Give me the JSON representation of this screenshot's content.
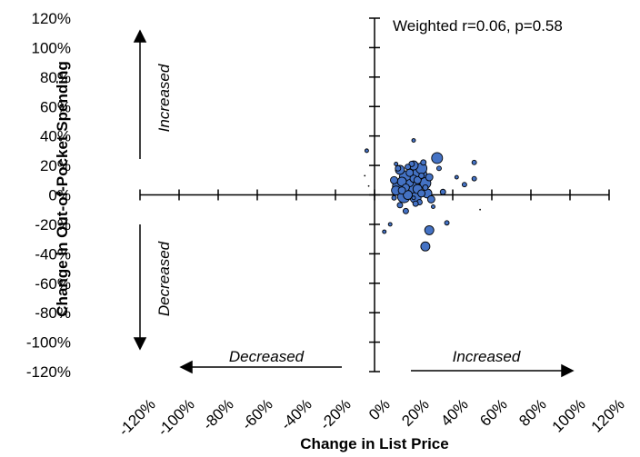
{
  "chart_data": {
    "type": "scatter",
    "title": "",
    "xlabel": "Change in List Price",
    "ylabel": "Change in Out-of-Pocket Spending",
    "xlim": [
      -1.2,
      1.2
    ],
    "ylim": [
      -1.2,
      1.2
    ],
    "x_ticks": [
      "-120%",
      "-100%",
      "-80%",
      "-60%",
      "-40%",
      "-20%",
      "0%",
      "20%",
      "40%",
      "60%",
      "80%",
      "100%",
      "120%"
    ],
    "y_ticks": [
      "120%",
      "100%",
      "80%",
      "60%",
      "40%",
      "20%",
      "0%",
      "-20%",
      "-40%",
      "-60%",
      "-80%",
      "-100%",
      "-120%"
    ],
    "annotation": "Weighted r=0.06, p=0.58",
    "direction_labels": {
      "y_up": "Increased",
      "y_down": "Decreased",
      "x_left": "Decreased",
      "x_right": "Increased"
    },
    "grid": false,
    "bubble_color": "#4472C4",
    "bubble_outline": "#000000",
    "points": [
      {
        "x": 0.19,
        "y": 0.05,
        "size": 9
      },
      {
        "x": 0.16,
        "y": 0.12,
        "size": 7
      },
      {
        "x": 0.23,
        "y": 0.14,
        "size": 8
      },
      {
        "x": 0.12,
        "y": 0.06,
        "size": 6
      },
      {
        "x": 0.15,
        "y": -0.01,
        "size": 7
      },
      {
        "x": 0.21,
        "y": -0.02,
        "size": 6
      },
      {
        "x": 0.26,
        "y": 0.08,
        "size": 6
      },
      {
        "x": 0.13,
        "y": 0.17,
        "size": 5
      },
      {
        "x": 0.2,
        "y": 0.2,
        "size": 5
      },
      {
        "x": 0.24,
        "y": 0.18,
        "size": 6
      },
      {
        "x": 0.17,
        "y": 0.0,
        "size": 5
      },
      {
        "x": 0.22,
        "y": 0.04,
        "size": 5
      },
      {
        "x": 0.14,
        "y": 0.09,
        "size": 5
      },
      {
        "x": 0.27,
        "y": 0.01,
        "size": 5
      },
      {
        "x": 0.11,
        "y": 0.03,
        "size": 5
      },
      {
        "x": 0.18,
        "y": 0.08,
        "size": 4
      },
      {
        "x": 0.2,
        "y": 0.11,
        "size": 4
      },
      {
        "x": 0.16,
        "y": 0.05,
        "size": 4
      },
      {
        "x": 0.24,
        "y": 0.01,
        "size": 4
      },
      {
        "x": 0.18,
        "y": 0.15,
        "size": 4
      },
      {
        "x": 0.22,
        "y": 0.1,
        "size": 4
      },
      {
        "x": 0.14,
        "y": 0.03,
        "size": 4
      },
      {
        "x": 0.28,
        "y": 0.12,
        "size": 4
      },
      {
        "x": 0.1,
        "y": 0.1,
        "size": 4
      },
      {
        "x": 0.19,
        "y": 0.21,
        "size": 3
      },
      {
        "x": 0.25,
        "y": 0.22,
        "size": 3
      },
      {
        "x": 0.23,
        "y": -0.05,
        "size": 3
      },
      {
        "x": 0.13,
        "y": -0.07,
        "size": 3
      },
      {
        "x": 0.29,
        "y": -0.03,
        "size": 4
      },
      {
        "x": 0.12,
        "y": 0.18,
        "size": 3
      },
      {
        "x": 0.16,
        "y": -0.11,
        "size": 3
      },
      {
        "x": 0.21,
        "y": -0.06,
        "size": 3
      },
      {
        "x": 0.26,
        "y": 0.05,
        "size": 3
      },
      {
        "x": 0.32,
        "y": 0.25,
        "size": 6
      },
      {
        "x": 0.28,
        "y": -0.24,
        "size": 5
      },
      {
        "x": 0.26,
        "y": -0.35,
        "size": 5
      },
      {
        "x": 0.35,
        "y": 0.02,
        "size": 3
      },
      {
        "x": 0.51,
        "y": 0.11,
        "size": 2.5
      },
      {
        "x": 0.51,
        "y": 0.22,
        "size": 2.5
      },
      {
        "x": 0.46,
        "y": 0.07,
        "size": 2.5
      },
      {
        "x": 0.37,
        "y": -0.19,
        "size": 2.5
      },
      {
        "x": 0.42,
        "y": 0.12,
        "size": 2
      },
      {
        "x": 0.33,
        "y": 0.18,
        "size": 2.5
      },
      {
        "x": 0.1,
        "y": -0.02,
        "size": 2.5
      },
      {
        "x": 0.2,
        "y": 0.37,
        "size": 2
      },
      {
        "x": 0.08,
        "y": -0.2,
        "size": 2
      },
      {
        "x": 0.05,
        "y": -0.25,
        "size": 2
      },
      {
        "x": 0.3,
        "y": -0.08,
        "size": 2
      },
      {
        "x": -0.04,
        "y": 0.3,
        "size": 2
      },
      {
        "x": -0.05,
        "y": 0.13,
        "size": 0.9
      },
      {
        "x": -0.03,
        "y": 0.06,
        "size": 0.9
      },
      {
        "x": 0.54,
        "y": -0.1,
        "size": 0.9
      },
      {
        "x": 0.11,
        "y": 0.21,
        "size": 2
      },
      {
        "x": 0.17,
        "y": 0.19,
        "size": 3
      },
      {
        "x": 0.24,
        "y": 0.13,
        "size": 3
      },
      {
        "x": 0.2,
        "y": -0.02,
        "size": 2
      }
    ]
  }
}
